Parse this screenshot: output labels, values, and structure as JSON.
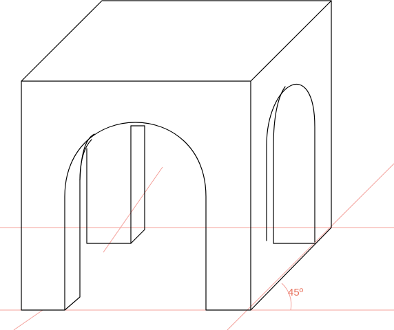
{
  "annotation": {
    "angle_label": "45º",
    "color": "#e8735f"
  },
  "colors": {
    "ink": "#000000",
    "guide": "#f4a09a",
    "background": "#ffffff"
  }
}
